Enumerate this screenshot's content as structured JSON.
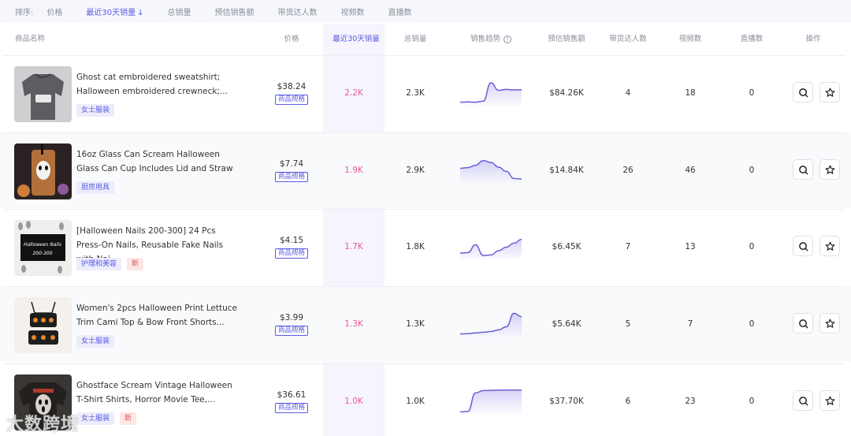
{
  "sortbar": {
    "label": "排序:",
    "options": [
      "价格",
      "最近30天销量",
      "总销量",
      "预估销售额",
      "带货达人数",
      "视频数",
      "直播数"
    ],
    "active_arrow": "↓"
  },
  "header": {
    "product": "商品名称",
    "price": "价格",
    "sales30": "最近30天销量",
    "total": "总销量",
    "trend": "销售趋势",
    "est": "预估销售额",
    "creators": "带货达人数",
    "videos": "视频数",
    "lives": "直播数",
    "actions": "操作"
  },
  "spec_label": "商品规格",
  "products": [
    {
      "title": "Ghost cat embroidered sweatshirt; Halloween embroidered crewneck;...",
      "tags": [
        "女士服装"
      ],
      "is_new": false,
      "price": "$38.24",
      "sales30": "2.2K",
      "total": "2.3K",
      "est": "$84.26K",
      "creators": "4",
      "videos": "18",
      "lives": "0",
      "trend": [
        0.08,
        0.09,
        0.08,
        0.12,
        0.9,
        0.58,
        0.62,
        0.6,
        0.61
      ]
    },
    {
      "title": "16oz Glass Can Scream Halloween Glass Can Cup Includes Lid and Straw",
      "tags": [
        "厨房用具"
      ],
      "is_new": false,
      "price": "$7.74",
      "sales30": "1.9K",
      "total": "2.9K",
      "est": "$14.84K",
      "creators": "26",
      "videos": "46",
      "lives": "0",
      "trend": [
        0.55,
        0.58,
        0.68,
        0.88,
        0.8,
        0.6,
        0.42,
        0.12,
        0.1
      ]
    },
    {
      "title": "[Halloween Nails 200-300] 24 Pcs Press-On Nails, Reusable Fake Nails with Nai...",
      "tags": [
        "护理和美容"
      ],
      "is_new": true,
      "price": "$4.15",
      "sales30": "1.7K",
      "total": "1.8K",
      "est": "$6.45K",
      "creators": "7",
      "videos": "13",
      "lives": "0",
      "trend": [
        0.2,
        0.22,
        0.55,
        0.1,
        0.12,
        0.3,
        0.45,
        0.62,
        0.78
      ]
    },
    {
      "title": "Women's 2pcs Halloween Print Lettuce Trim Cami Top & Bow Front Shorts...",
      "tags": [
        "女士服装"
      ],
      "is_new": false,
      "price": "$3.99",
      "sales30": "1.3K",
      "total": "1.3K",
      "est": "$5.64K",
      "creators": "5",
      "videos": "7",
      "lives": "0",
      "trend": [
        0.05,
        0.06,
        0.09,
        0.12,
        0.15,
        0.22,
        0.35,
        0.92,
        0.78
      ]
    },
    {
      "title": "Ghostface Scream Vintage Halloween T-Shirt Shirts, Horror Movie Tee,...",
      "tags": [
        "女士服装"
      ],
      "is_new": true,
      "price": "$36.61",
      "sales30": "1.0K",
      "total": "1.0K",
      "est": "$37.70K",
      "creators": "6",
      "videos": "23",
      "lives": "0",
      "trend": [
        0.02,
        0.04,
        0.82,
        0.92,
        0.93,
        0.94,
        0.94,
        0.94,
        0.94
      ]
    }
  ],
  "new_label": "新",
  "watermark": "大数跨境",
  "colors": {
    "accent": "#5b5be6",
    "pink": "#e7589a",
    "spark": "#6b5fd6"
  }
}
